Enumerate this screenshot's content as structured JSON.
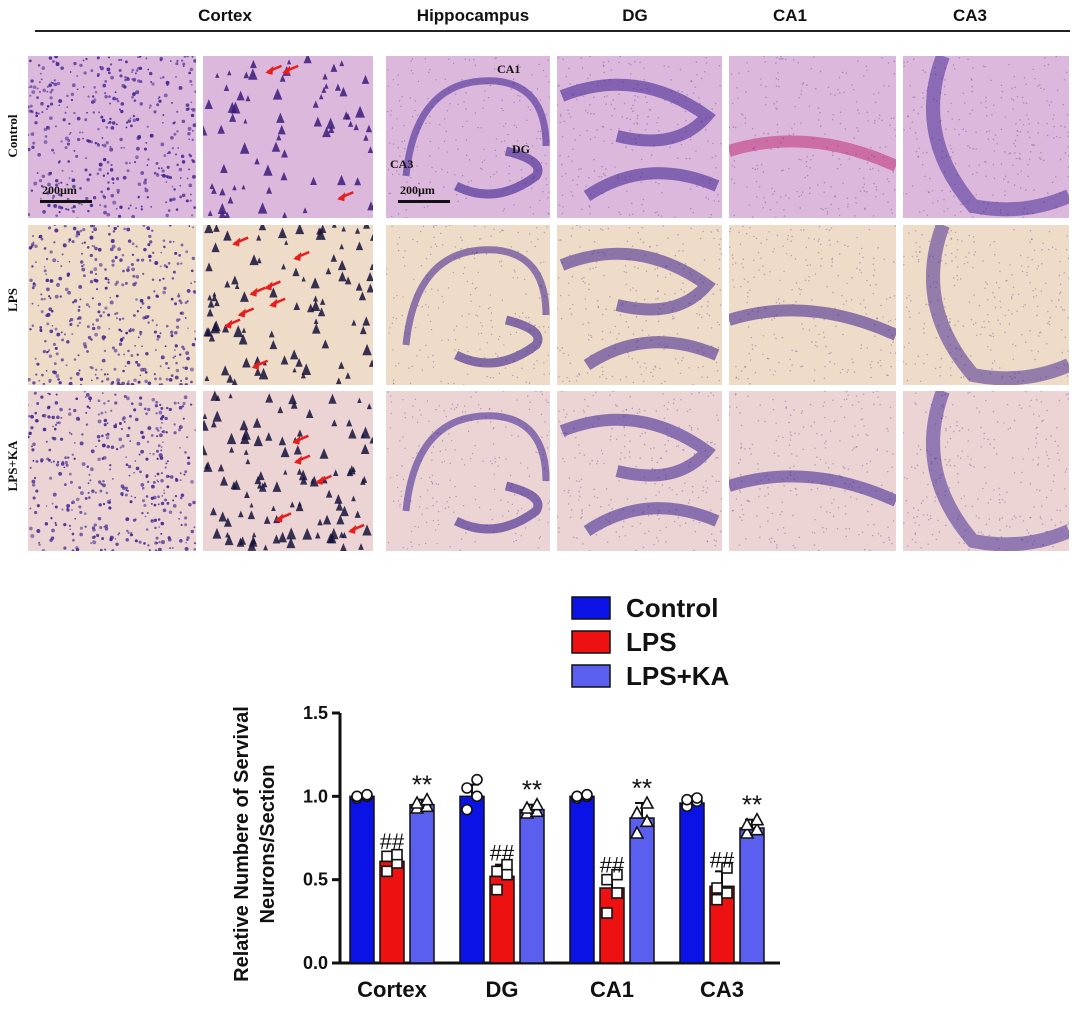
{
  "figure": {
    "column_headers": {
      "cortex": "Cortex",
      "hippocampus": "Hippocampus",
      "dg": "DG",
      "ca1": "CA1",
      "ca3": "CA3"
    },
    "row_labels": [
      "Control",
      "LPS",
      "LPS+KA"
    ],
    "scale_bar": "200µm",
    "hippocampus_annotations": {
      "ca1": "CA1",
      "dg": "DG",
      "ca3": "CA3"
    }
  },
  "colors": {
    "control": "#0a12e6",
    "lps": "#ee1111",
    "lps_ka": "#5b5ff0",
    "tissue_control": "#dcb8dc",
    "tissue_lps": "#efdcc8",
    "arrow": "#e81d1d",
    "stain": "#3a1e8e"
  },
  "chart_data": {
    "type": "bar",
    "categories": [
      "Cortex",
      "DG",
      "CA1",
      "CA3"
    ],
    "ylabel": "Relative Numbere of Servival Neurons/Section",
    "ylim": [
      0,
      1.5
    ],
    "yticks": [
      "0.0",
      "0.5",
      "1.0",
      "1.5"
    ],
    "legend_position": "top",
    "series": [
      {
        "name": "Control",
        "values": [
          1.0,
          1.0,
          1.0,
          0.96
        ],
        "errors": [
          0.01,
          0.07,
          0.01,
          0.04
        ],
        "points": [
          [
            0.99,
            1.0,
            1.0,
            1.01
          ],
          [
            0.92,
            1.0,
            1.05,
            1.1
          ],
          [
            0.99,
            1.0,
            1.0,
            1.01
          ],
          [
            0.94,
            0.97,
            0.98,
            0.99
          ]
        ],
        "marker": "circle"
      },
      {
        "name": "LPS",
        "values": [
          0.61,
          0.52,
          0.45,
          0.46
        ],
        "errors": [
          0.05,
          0.07,
          0.07,
          0.09
        ],
        "points": [
          [
            0.55,
            0.6,
            0.64,
            0.65
          ],
          [
            0.44,
            0.53,
            0.55,
            0.59
          ],
          [
            0.3,
            0.42,
            0.5,
            0.53
          ],
          [
            0.38,
            0.42,
            0.45,
            0.57
          ]
        ],
        "marker": "square"
      },
      {
        "name": "LPS+KA",
        "values": [
          0.95,
          0.92,
          0.87,
          0.81
        ],
        "errors": [
          0.03,
          0.03,
          0.09,
          0.05
        ],
        "points": [
          [
            0.93,
            0.94,
            0.96,
            0.98
          ],
          [
            0.9,
            0.91,
            0.93,
            0.95
          ],
          [
            0.78,
            0.85,
            0.9,
            0.96
          ],
          [
            0.78,
            0.8,
            0.83,
            0.86
          ]
        ],
        "marker": "triangle"
      }
    ],
    "annotations": {
      "lps": "##",
      "lps_ka": "**"
    }
  }
}
